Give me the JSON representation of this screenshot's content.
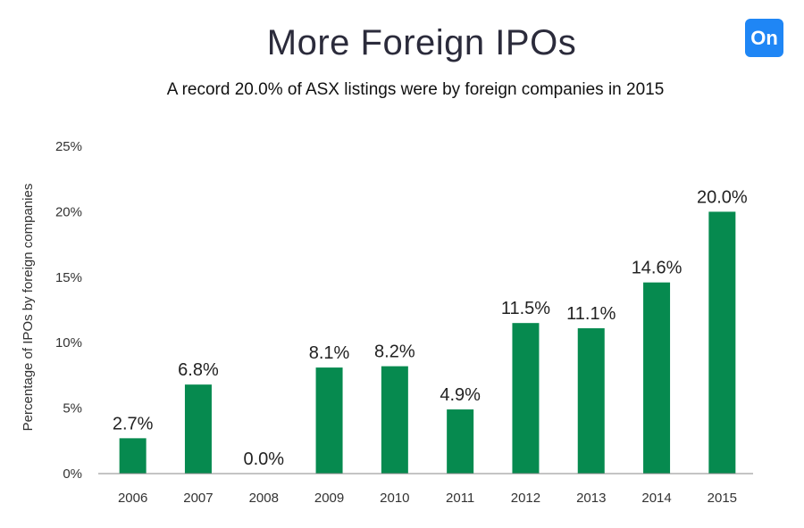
{
  "header": {
    "title": "More Foreign IPOs",
    "subtitle": "A record 20.0% of ASX listings were by foreign companies in 2015",
    "logo_text": "On"
  },
  "colors": {
    "bar": "#068a4f",
    "logo": "#1f86f5"
  },
  "chart_data": {
    "type": "bar",
    "title": "More Foreign IPOs",
    "subtitle": "A record 20.0% of ASX listings were by foreign companies in 2015",
    "xlabel": "",
    "ylabel": "Percentage of IPOs by foreign companies",
    "categories": [
      "2006",
      "2007",
      "2008",
      "2009",
      "2010",
      "2011",
      "2012",
      "2013",
      "2014",
      "2015"
    ],
    "values": [
      2.7,
      6.8,
      0.0,
      8.1,
      8.2,
      4.9,
      11.5,
      11.1,
      14.6,
      20.0
    ],
    "data_labels": [
      "2.7%",
      "6.8%",
      "0.0%",
      "8.1%",
      "8.2%",
      "4.9%",
      "11.5%",
      "11.1%",
      "14.6%",
      "20.0%"
    ],
    "yticks": [
      0,
      5,
      10,
      15,
      20,
      25
    ],
    "ytick_labels": [
      "0%",
      "5%",
      "10%",
      "15%",
      "20%",
      "25%"
    ],
    "ylim": [
      0,
      25
    ],
    "grid": false,
    "legend": "none"
  }
}
